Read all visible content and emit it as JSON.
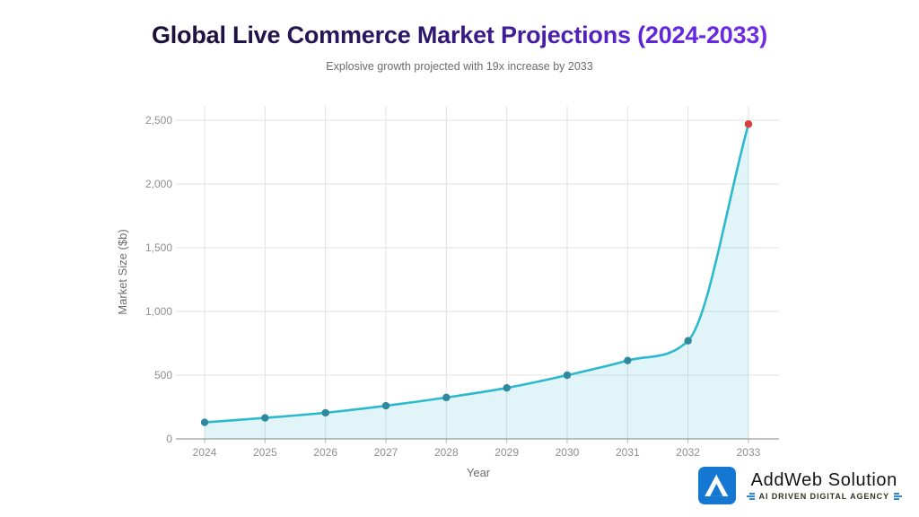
{
  "header": {
    "title": "Global Live Commerce Market Projections (2024-2033)",
    "subtitle": "Explosive growth projected with 19x increase by 2033",
    "title_gradient": [
      "#18102f",
      "#2c1668",
      "#5d25d6",
      "#7b2ff2"
    ]
  },
  "chart_data": {
    "type": "area",
    "x": [
      2024,
      2025,
      2026,
      2027,
      2028,
      2029,
      2030,
      2031,
      2032,
      2033
    ],
    "series": [
      {
        "name": "Market Size ($b)",
        "values": [
          130,
          165,
          205,
          260,
          325,
          400,
          500,
          615,
          770,
          2470
        ]
      }
    ],
    "xlabel": "Year",
    "ylabel": "Market Size ($b)",
    "ylim": [
      0,
      2500
    ],
    "yticks": [
      0,
      500,
      1000,
      1500,
      2000,
      2500
    ],
    "ytick_labels": [
      "0",
      "500",
      "1,000",
      "1,500",
      "2,000",
      "2,500"
    ],
    "grid": true,
    "legend": "none",
    "line_color": "#2cb9cd",
    "point_color": "#2e899e",
    "last_point_color": "#d5403c",
    "fill_color": "rgba(44,185,205,0.14)",
    "grid_color": "#e2e2e2",
    "axis_line_color": "#848484",
    "tick_label_color": "#8f8f8f",
    "axis_title_color": "#6e6e6e"
  },
  "footer_logo": {
    "brand": "AddWeb Solution",
    "tagline": "AI DRIVEN DIGITAL AGENCY",
    "logo_bg": "#1478d3",
    "logo_fg": "#ffffff",
    "tag_icon_color": "#1478d3"
  }
}
